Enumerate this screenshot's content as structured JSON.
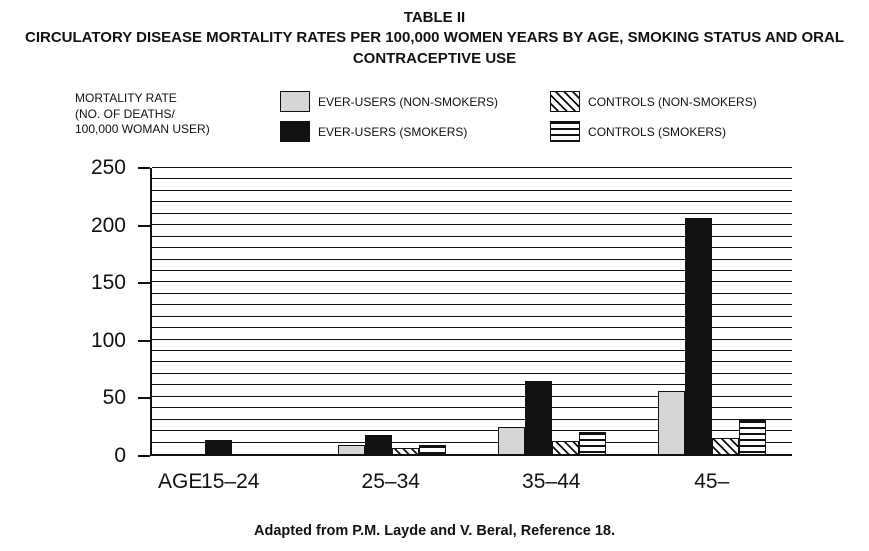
{
  "header": {
    "table_label": "TABLE II",
    "title": "CIRCULATORY DISEASE MORTALITY RATES PER 100,000 WOMEN YEARS BY AGE, SMOKING STATUS AND ORAL CONTRACEPTIVE USE"
  },
  "legend": {
    "axis_label": "MORTALITY RATE\n(NO. OF DEATHS/\n100,000 WOMAN USER)",
    "items": [
      {
        "label": "EVER-USERS (NON-SMOKERS)",
        "pattern": "solid-gray"
      },
      {
        "label": "EVER-USERS (SMOKERS)",
        "pattern": "solid-black"
      },
      {
        "label": "CONTROLS (NON-SMOKERS)",
        "pattern": "diagonal-hatch"
      },
      {
        "label": "CONTROLS (SMOKERS)",
        "pattern": "horizontal-lines"
      }
    ]
  },
  "chart_data": {
    "type": "bar",
    "title": "CIRCULATORY DISEASE MORTALITY RATES PER 100,000 WOMEN YEARS BY AGE, SMOKING STATUS AND ORAL CONTRACEPTIVE USE",
    "categories": [
      "15–24",
      "25–34",
      "35–44",
      "45–"
    ],
    "series": [
      {
        "name": "EVER-USERS (NON-SMOKERS)",
        "pattern": "solid-gray",
        "values": [
          0,
          8,
          24,
          55
        ]
      },
      {
        "name": "EVER-USERS (SMOKERS)",
        "pattern": "solid-black",
        "values": [
          12,
          17,
          64,
          206
        ]
      },
      {
        "name": "CONTROLS (NON-SMOKERS)",
        "pattern": "diagonal-hatch",
        "values": [
          0,
          5,
          11,
          14
        ]
      },
      {
        "name": "CONTROLS (SMOKERS)",
        "pattern": "horizontal-lines",
        "values": [
          0,
          8,
          19,
          30
        ]
      }
    ],
    "xlabel": "AGE",
    "ylabel": "MORTALITY RATE (NO. OF DEATHS/100,000 WOMAN USER)",
    "ylim": [
      0,
      250
    ],
    "yticks": [
      0,
      50,
      100,
      150,
      200,
      250
    ],
    "grid_step": 10,
    "grid": true,
    "legend_position": "top"
  },
  "caption": "Adapted from P.M. Layde and V. Beral, Reference 18.",
  "colors": {
    "bar_gray": "#d6d6d6",
    "bar_black": "#111111",
    "text": "#111111",
    "background": "#ffffff"
  }
}
